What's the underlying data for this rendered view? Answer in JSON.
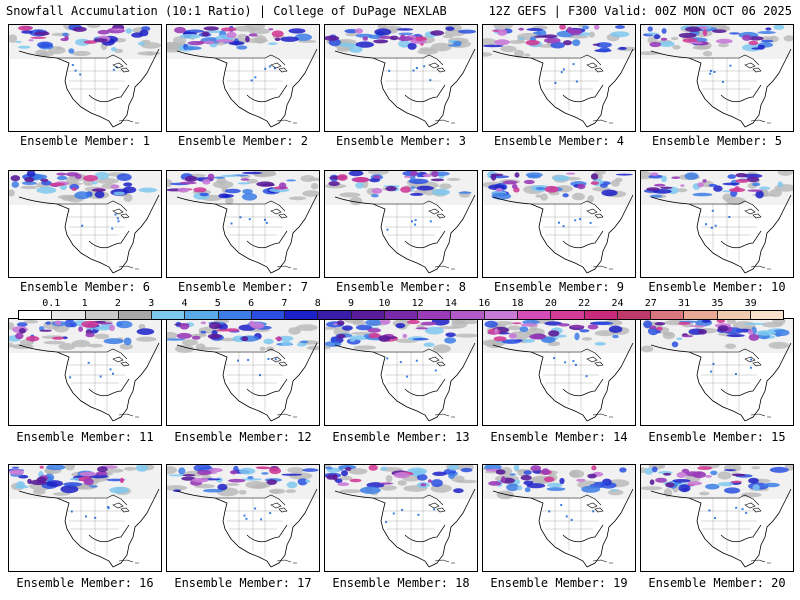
{
  "header": {
    "left": "Snowfall Accumulation (10:1 Ratio) | College of DuPage NEXLAB",
    "right": "12Z GEFS | F300 Valid: 00Z MON OCT 06 2025"
  },
  "panels": [
    {
      "label": "Ensemble Member: 1"
    },
    {
      "label": "Ensemble Member: 2"
    },
    {
      "label": "Ensemble Member: 3"
    },
    {
      "label": "Ensemble Member: 4"
    },
    {
      "label": "Ensemble Member: 5"
    },
    {
      "label": "Ensemble Member: 6"
    },
    {
      "label": "Ensemble Member: 7"
    },
    {
      "label": "Ensemble Member: 8"
    },
    {
      "label": "Ensemble Member: 9"
    },
    {
      "label": "Ensemble Member: 10"
    },
    {
      "label": "Ensemble Member: 11"
    },
    {
      "label": "Ensemble Member: 12"
    },
    {
      "label": "Ensemble Member: 13"
    },
    {
      "label": "Ensemble Member: 14"
    },
    {
      "label": "Ensemble Member: 15"
    },
    {
      "label": "Ensemble Member: 16"
    },
    {
      "label": "Ensemble Member: 17"
    },
    {
      "label": "Ensemble Member: 18"
    },
    {
      "label": "Ensemble Member: 19"
    },
    {
      "label": "Ensemble Member: 20"
    }
  ],
  "scale": {
    "labels": [
      "0.1",
      "1",
      "2",
      "3",
      "4",
      "5",
      "6",
      "7",
      "8",
      "9",
      "10",
      "12",
      "14",
      "16",
      "18",
      "20",
      "22",
      "24",
      "27",
      "31",
      "35",
      "39"
    ],
    "colors": [
      "#ffffff",
      "#e6e6e6",
      "#c8c8c8",
      "#a8a8a8",
      "#7fc8f0",
      "#5aaae8",
      "#3c7ee6",
      "#2a4fe0",
      "#1c20c8",
      "#3a1ca8",
      "#5a1c98",
      "#7a2aa8",
      "#9a3cb8",
      "#b45ac8",
      "#c87ad6",
      "#d64cb8",
      "#d23c96",
      "#c82a7c",
      "#be3a6a",
      "#d8787e",
      "#e8a894",
      "#f2c8ae",
      "#f8e2cc"
    ]
  }
}
